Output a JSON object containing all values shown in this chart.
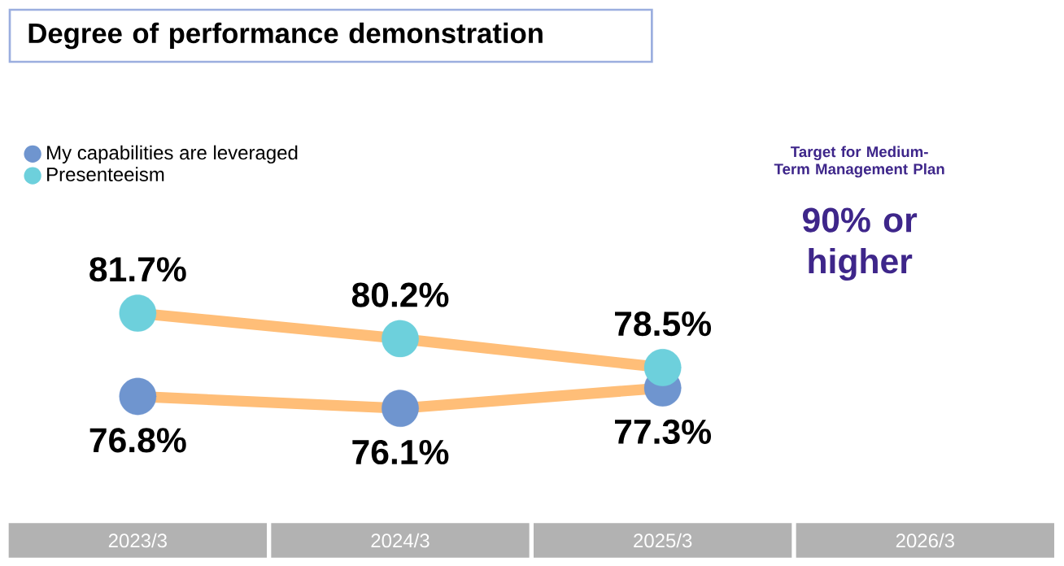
{
  "chart_data": {
    "type": "line",
    "title": "Degree of performance demonstration",
    "categories": [
      "2023/3",
      "2024/3",
      "2025/3",
      "2026/3"
    ],
    "series": [
      {
        "name": "My capabilities are leveraged",
        "color": "#6f95cf",
        "values": [
          76.8,
          76.1,
          77.3,
          null
        ],
        "value_labels": [
          "76.8%",
          "76.1%",
          "77.3%",
          null
        ]
      },
      {
        "name": "Presenteeism",
        "color": "#6dd0dc",
        "values": [
          81.7,
          80.2,
          78.5,
          null
        ],
        "value_labels": [
          "81.7%",
          "80.2%",
          "78.5%",
          null
        ]
      }
    ],
    "annotations": [
      "Target for Medium-Term Management Plan",
      "90% or higher"
    ],
    "legend": "top left",
    "marker": "circle",
    "tick_labels": "x"
  }
}
